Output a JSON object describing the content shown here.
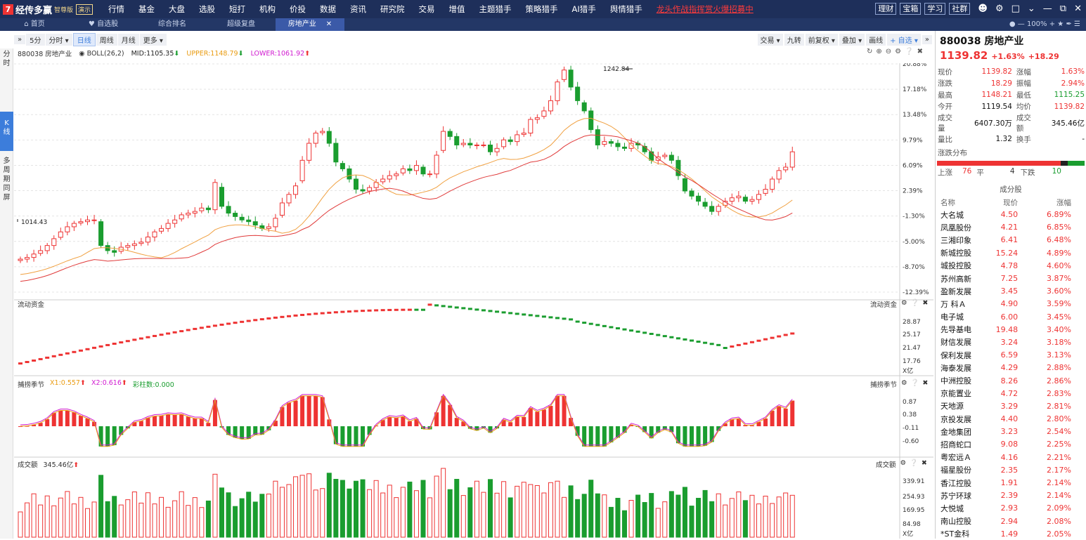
{
  "app": {
    "name": "经传多赢",
    "edition": "智尊版",
    "mode": "演示"
  },
  "topmenu": [
    "行情",
    "基金",
    "大盘",
    "选股",
    "短打",
    "机构",
    "价投",
    "数据",
    "资讯",
    "研究院",
    "交易",
    "增值",
    "主题猎手",
    "策略猎手",
    "AI猎手",
    "舆情猎手"
  ],
  "promo": "龙头作战指挥赏火爆招募中",
  "topright": {
    "buttons": [
      "理财",
      "宝箱",
      "学习",
      "社群"
    ]
  },
  "tabs": [
    {
      "label": "首页"
    },
    {
      "label": "自选股"
    },
    {
      "label": "综合排名"
    },
    {
      "label": "超级复盘"
    },
    {
      "label": "房地产业",
      "active": true
    }
  ],
  "zoom": "100%",
  "sidebar": [
    "分",
    "时",
    "K",
    "线",
    "多",
    "周",
    "期",
    "同",
    "屏"
  ],
  "toolbar": {
    "left": [
      "5分",
      "分时",
      "日线",
      "周线",
      "月线",
      "更多"
    ],
    "active": "日线",
    "right": [
      "交易",
      "九转",
      "前复权",
      "叠加",
      "画线",
      "自选"
    ]
  },
  "chart": {
    "code_name": "880038 房地产业",
    "indicator": "BOLL(26,2)",
    "mid": "MID:1105.35",
    "upper": "UPPER:1148.79",
    "lower": "LOWER:1061.92",
    "high_label": "1242.84",
    "low_label": "1014.43",
    "y_ticks": [
      "20.88%",
      "17.18%",
      "13.48%",
      "9.79%",
      "6.09%",
      "2.39%",
      "-1.30%",
      "-5.00%",
      "-8.70%",
      "-12.39%"
    ]
  },
  "liquidity": {
    "title": "流动资金",
    "ticks": [
      "28.87",
      "25.17",
      "21.47",
      "17.76"
    ],
    "unit": "X亿"
  },
  "season": {
    "title": "捕捞季节",
    "x1": "X1:0.557",
    "x2": "X2:0.616",
    "bars": "彩柱数:0.000",
    "ticks": [
      "0.87",
      "0.38",
      "-0.11",
      "-0.60"
    ]
  },
  "volume": {
    "title": "成交额",
    "value": "345.46亿",
    "ticks": [
      "339.91",
      "254.93",
      "169.95",
      "84.98"
    ],
    "unit": "X亿"
  },
  "stock": {
    "title": "880038 房地产业",
    "price": "1139.82",
    "change_pct": "+1.63%",
    "change": "+18.29",
    "quotes": [
      [
        "现价",
        "1139.82",
        "涨幅",
        "1.63%"
      ],
      [
        "涨跌",
        "18.29",
        "振幅",
        "2.94%"
      ],
      [
        "最高",
        "1148.21",
        "最低",
        "1115.25"
      ],
      [
        "今开",
        "1119.54",
        "均价",
        "1139.82"
      ],
      [
        "成交量",
        "6407.30万",
        "成交额",
        "345.46亿"
      ],
      [
        "量比",
        "1.32",
        "换手",
        "-"
      ]
    ],
    "dist_title": "涨跌分布",
    "up_label": "上涨",
    "up_count": "76",
    "flat_label": "平",
    "flat_count": "4",
    "down_label": "下跌",
    "down_count": "10",
    "constituents_title": "成分股",
    "headers": [
      "名称",
      "现价",
      "涨幅"
    ],
    "constituents": [
      [
        "大名城",
        "4.50",
        "6.89%"
      ],
      [
        "凤凰股份",
        "4.21",
        "6.85%"
      ],
      [
        "三湘印象",
        "6.41",
        "6.48%"
      ],
      [
        "新城控股",
        "15.24",
        "4.89%"
      ],
      [
        "城投控股",
        "4.78",
        "4.60%"
      ],
      [
        "苏州高新",
        "7.25",
        "3.87%"
      ],
      [
        "盈新发展",
        "3.45",
        "3.60%"
      ],
      [
        "万 科Ａ",
        "4.90",
        "3.59%"
      ],
      [
        "电子城",
        "6.00",
        "3.45%"
      ],
      [
        "先导基电",
        "19.48",
        "3.40%"
      ],
      [
        "财信发展",
        "3.24",
        "3.18%"
      ],
      [
        "保利发展",
        "6.59",
        "3.13%"
      ],
      [
        "海泰发展",
        "4.29",
        "2.88%"
      ],
      [
        "中洲控股",
        "8.26",
        "2.86%"
      ],
      [
        "京能置业",
        "4.72",
        "2.83%"
      ],
      [
        "天地源",
        "3.29",
        "2.81%"
      ],
      [
        "京投发展",
        "4.40",
        "2.80%"
      ],
      [
        "金地集团",
        "3.23",
        "2.54%"
      ],
      [
        "招商蛇口",
        "9.08",
        "2.25%"
      ],
      [
        "粤宏远Ａ",
        "4.16",
        "2.21%"
      ],
      [
        "福星股份",
        "2.35",
        "2.17%"
      ],
      [
        "香江控股",
        "1.91",
        "2.14%"
      ],
      [
        "苏宁环球",
        "2.39",
        "2.14%"
      ],
      [
        "大悦城",
        "2.93",
        "2.09%"
      ],
      [
        "南山控股",
        "2.94",
        "2.08%"
      ],
      [
        "*ST金科",
        "1.49",
        "2.05%"
      ]
    ]
  },
  "chart_data": {
    "type": "candlestick",
    "close": [
      1014,
      1016,
      1020,
      1024,
      1030,
      1038,
      1046,
      1052,
      1056,
      1058,
      1060,
      1060,
      1030,
      1024,
      1022,
      1028,
      1030,
      1032,
      1034,
      1040,
      1046,
      1050,
      1056,
      1060,
      1066,
      1068,
      1070,
      1074,
      1072,
      1104,
      1076,
      1068,
      1064,
      1060,
      1058,
      1054,
      1050,
      1052,
      1062,
      1080,
      1090,
      1100,
      1130,
      1150,
      1162,
      1164,
      1150,
      1128,
      1120,
      1108,
      1096,
      1094,
      1098,
      1104,
      1108,
      1112,
      1114,
      1120,
      1118,
      1124,
      1114,
      1114,
      1136,
      1164,
      1158,
      1148,
      1150,
      1148,
      1148,
      1148,
      1140,
      1144,
      1154,
      1152,
      1160,
      1162,
      1178,
      1180,
      1188,
      1200,
      1222,
      1236,
      1216,
      1200,
      1188,
      1166,
      1148,
      1152,
      1150,
      1146,
      1144,
      1150,
      1148,
      1140,
      1130,
      1134,
      1136,
      1130,
      1112,
      1094,
      1088,
      1082,
      1076,
      1070,
      1076,
      1082,
      1086,
      1088,
      1082,
      1084,
      1090,
      1096,
      1108,
      1118,
      1122,
      1140
    ]
  }
}
